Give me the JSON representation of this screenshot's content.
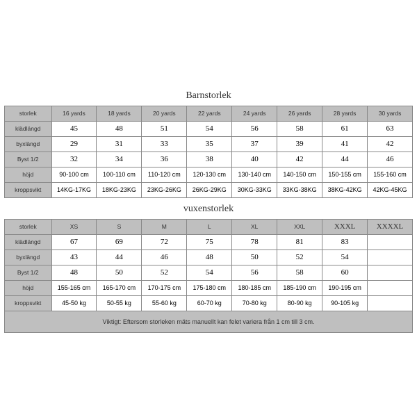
{
  "child": {
    "title": "Barnstorlek",
    "headers": [
      "storlek",
      "16 yards",
      "18 yards",
      "20 yards",
      "22 yards",
      "24 yards",
      "26 yards",
      "28 yards",
      "30 yards"
    ],
    "rows": [
      {
        "label": "klädlängd",
        "values": [
          "45",
          "48",
          "51",
          "54",
          "56",
          "58",
          "61",
          "63"
        ],
        "style": "serif"
      },
      {
        "label": "byxlängd",
        "values": [
          "29",
          "31",
          "33",
          "35",
          "37",
          "39",
          "41",
          "42"
        ],
        "style": "serif"
      },
      {
        "label": "Byst 1/2",
        "values": [
          "32",
          "34",
          "36",
          "38",
          "40",
          "42",
          "44",
          "46"
        ],
        "style": "serif"
      },
      {
        "label": "höjd",
        "values": [
          "90-100 cm",
          "100-110 cm",
          "110-120 cm",
          "120-130 cm",
          "130-140 cm",
          "140-150 cm",
          "150-155 cm",
          "155-160 cm"
        ],
        "style": "small"
      },
      {
        "label": "kroppsvikt",
        "values": [
          "14KG-17KG",
          "18KG-23KG",
          "23KG-26KG",
          "26KG-29KG",
          "30KG-33KG",
          "33KG-38KG",
          "38KG-42KG",
          "42KG-45KG"
        ],
        "style": "small"
      }
    ]
  },
  "adult": {
    "title": "vuxenstorlek",
    "headers": [
      "storlek",
      "XS",
      "S",
      "M",
      "L",
      "XL",
      "XXL",
      "XXXL",
      "XXXXL"
    ],
    "rows": [
      {
        "label": "klädlängd",
        "values": [
          "67",
          "69",
          "72",
          "75",
          "78",
          "81",
          "83",
          ""
        ],
        "style": "serif"
      },
      {
        "label": "byxlängd",
        "values": [
          "43",
          "44",
          "46",
          "48",
          "50",
          "52",
          "54",
          ""
        ],
        "style": "serif"
      },
      {
        "label": "Byst 1/2",
        "values": [
          "48",
          "50",
          "52",
          "54",
          "56",
          "58",
          "60",
          ""
        ],
        "style": "serif"
      },
      {
        "label": "höjd",
        "values": [
          "155-165 cm",
          "165-170 cm",
          "170-175 cm",
          "175-180 cm",
          "180-185 cm",
          "185-190 cm",
          "190-195 cm",
          ""
        ],
        "style": "small"
      },
      {
        "label": "kroppsvikt",
        "values": [
          "45-50 kg",
          "50-55 kg",
          "55-60 kg",
          "60-70 kg",
          "70-80 kg",
          "80-90 kg",
          "90-105 kg",
          ""
        ],
        "style": "small"
      }
    ]
  },
  "footer": "Viktigt: Eftersom storleken mäts manuellt kan felet variera från 1 cm till 3 cm.",
  "style": {
    "header_bg": "#bfbfbf",
    "border_color": "#888888",
    "body_bg": "#ffffff",
    "serif_fontsize": 11,
    "small_fontsize": 9,
    "header_fontsize": 8.5
  }
}
